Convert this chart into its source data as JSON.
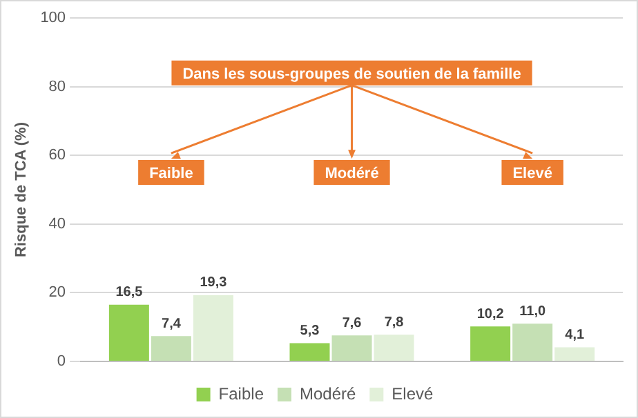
{
  "chart_data": {
    "type": "bar",
    "ylabel": "Risque de TCA (%)",
    "categories": [
      "Faible",
      "Modéré",
      "Elevé"
    ],
    "annotations": [
      "Dans les sous-groupes de soutien de la famille"
    ],
    "series": [
      {
        "name": "Faible",
        "color": "#92d050",
        "values": [
          16.5,
          5.3,
          10.2
        ],
        "value_labels": [
          "16,5",
          "5,3",
          "10,2"
        ]
      },
      {
        "name": "Modéré",
        "color": "#c5e0b4",
        "values": [
          7.4,
          7.6,
          11.0
        ],
        "value_labels": [
          "7,4",
          "7,6",
          "11,0"
        ]
      },
      {
        "name": "Elevé",
        "color": "#e2f0d9",
        "values": [
          19.3,
          7.8,
          4.1
        ],
        "value_labels": [
          "19,3",
          "7,8",
          "4,1"
        ]
      }
    ],
    "ylim": [
      0,
      100
    ],
    "yticks": [
      0,
      20,
      40,
      60,
      80,
      100
    ],
    "grid": "y",
    "legend": "bottom"
  }
}
